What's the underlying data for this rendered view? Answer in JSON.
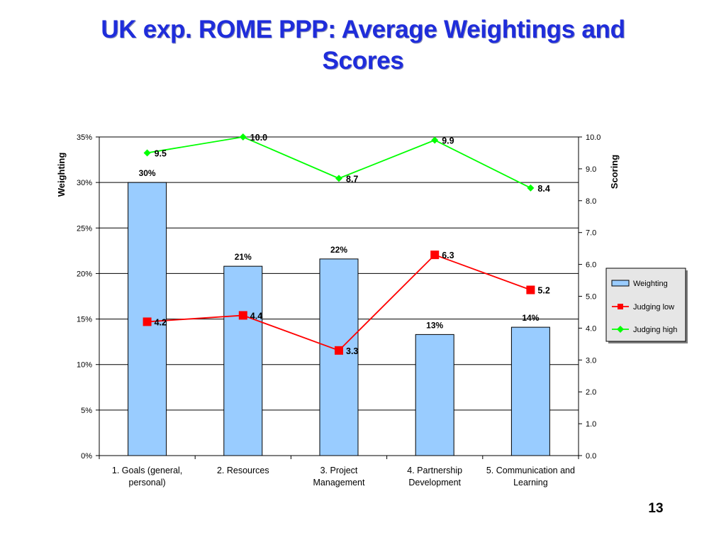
{
  "slide": {
    "title_line1": "UK exp. ROME PPP: Average Weightings and",
    "title_line2": "Scores",
    "page_number": "13"
  },
  "colors": {
    "title": "#1f2ddb",
    "bar_fill": "#99ccff",
    "judging_low": "#ff0000",
    "judging_high": "#00ff00",
    "legend_bg": "#e6e6e6"
  },
  "chart_data": {
    "type": "bar",
    "categories": [
      [
        "1. Goals (general,",
        "personal)"
      ],
      [
        "2. Resources"
      ],
      [
        "3. Project",
        "Management"
      ],
      [
        "4. Partnership",
        "Development"
      ],
      [
        "5. Communication and",
        "Learning"
      ]
    ],
    "y_left": {
      "label": "Weighting",
      "lim": [
        0,
        35
      ],
      "ticks": [
        0,
        5,
        10,
        15,
        20,
        25,
        30,
        35
      ],
      "tick_labels": [
        "0%",
        "5%",
        "10%",
        "15%",
        "20%",
        "25%",
        "30%",
        "35%"
      ]
    },
    "y_right": {
      "label": "Scoring",
      "lim": [
        0,
        10
      ],
      "ticks": [
        0,
        1,
        2,
        3,
        4,
        5,
        6,
        7,
        8,
        9,
        10
      ],
      "tick_labels": [
        "0.0",
        "1.0",
        "2.0",
        "3.0",
        "4.0",
        "5.0",
        "6.0",
        "7.0",
        "8.0",
        "9.0",
        "10.0"
      ]
    },
    "grid": true,
    "legend_position": "right",
    "series": [
      {
        "name": "Weighting",
        "kind": "bar",
        "axis": "left",
        "values": [
          30,
          20.8,
          21.6,
          13.3,
          14.1
        ],
        "labels": [
          "30%",
          "21%",
          "22%",
          "13%",
          "14%"
        ]
      },
      {
        "name": "Judging low",
        "kind": "line",
        "axis": "right",
        "marker": "square",
        "values": [
          4.2,
          4.4,
          3.3,
          6.3,
          5.2
        ],
        "labels": [
          "4.2",
          "4.4",
          "3.3",
          "6.3",
          "5.2"
        ]
      },
      {
        "name": "Judging high",
        "kind": "line",
        "axis": "right",
        "marker": "diamond",
        "values": [
          9.5,
          10.0,
          8.7,
          9.9,
          8.4
        ],
        "labels": [
          "9.5",
          "10.0",
          "8.7",
          "9.9",
          "8.4"
        ]
      }
    ]
  }
}
